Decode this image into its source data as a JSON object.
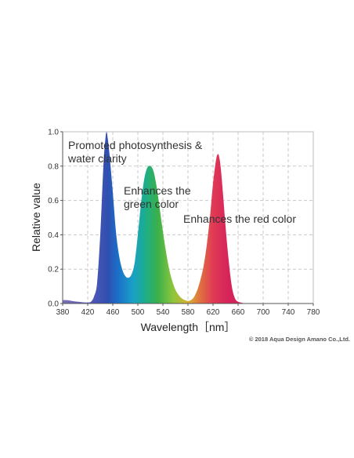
{
  "chart_data": {
    "type": "area",
    "xlabel": "Wavelength［nm］",
    "ylabel": "Relative value",
    "xlim": [
      380,
      780
    ],
    "ylim": [
      0,
      1.0
    ],
    "x_ticks": [
      "380",
      "420",
      "460",
      "500",
      "540",
      "580",
      "620",
      "660",
      "700",
      "740",
      "780"
    ],
    "y_ticks": [
      "0.0",
      "0.2",
      "0.4",
      "0.6",
      "0.8",
      "1.0"
    ],
    "grid": true,
    "series": [
      {
        "x": [
          380,
          385,
          390,
          395,
          400,
          405,
          410,
          415,
          420,
          425,
          430,
          435,
          440,
          445,
          448,
          450,
          452,
          455,
          460,
          465,
          470,
          475,
          480,
          485,
          490,
          495,
          500,
          505,
          510,
          515,
          520,
          525,
          530,
          535,
          540,
          545,
          550,
          555,
          560,
          565,
          570,
          575,
          580,
          585,
          590,
          595,
          600,
          605,
          610,
          615,
          620,
          625,
          628,
          630,
          632,
          635,
          640,
          645,
          650,
          655,
          660,
          665,
          670
        ],
        "y": [
          0.02,
          0.02,
          0.018,
          0.015,
          0.012,
          0.01,
          0.008,
          0.006,
          0.006,
          0.01,
          0.04,
          0.12,
          0.4,
          0.8,
          0.95,
          1.0,
          0.96,
          0.86,
          0.65,
          0.42,
          0.28,
          0.2,
          0.16,
          0.15,
          0.17,
          0.24,
          0.4,
          0.58,
          0.72,
          0.79,
          0.8,
          0.77,
          0.68,
          0.55,
          0.42,
          0.3,
          0.2,
          0.13,
          0.08,
          0.05,
          0.03,
          0.02,
          0.015,
          0.02,
          0.04,
          0.08,
          0.14,
          0.22,
          0.34,
          0.5,
          0.7,
          0.84,
          0.87,
          0.85,
          0.8,
          0.68,
          0.45,
          0.25,
          0.1,
          0.03,
          0.01,
          0.005,
          0.0
        ]
      }
    ],
    "annotations": [
      {
        "lines": [
          "Promoted photosynthesis &",
          "water clarity"
        ]
      },
      {
        "lines": [
          "Enhances the",
          "green color"
        ]
      },
      {
        "lines": [
          "Enhances the red color"
        ]
      }
    ]
  },
  "copyright": "© 2018 Aqua Design Amano Co.,Ltd."
}
